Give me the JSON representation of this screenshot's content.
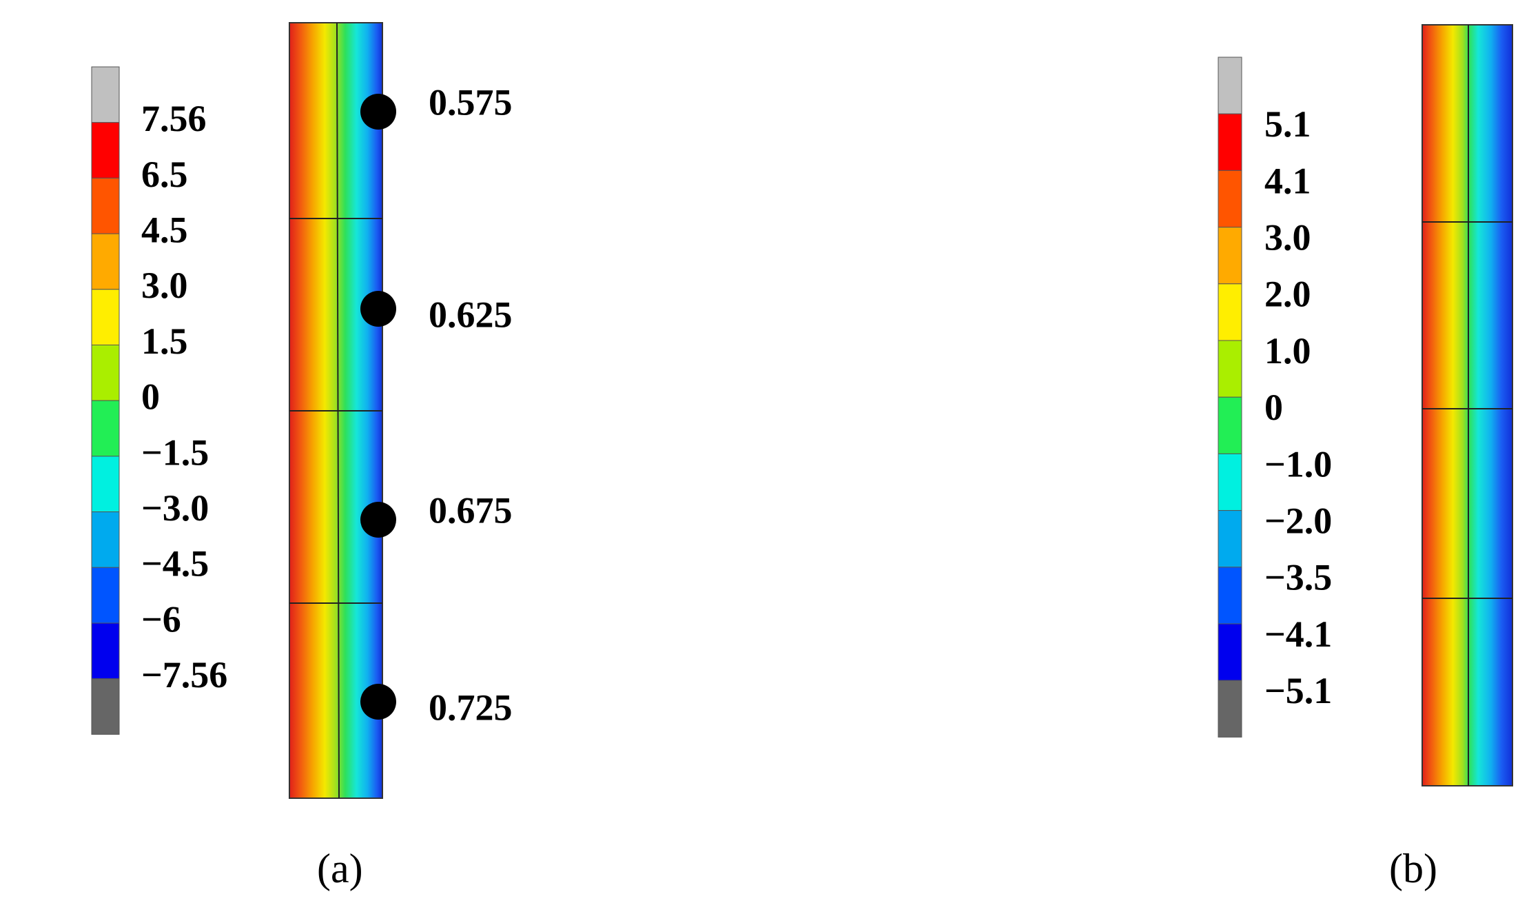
{
  "panels": [
    {
      "label": "(a)",
      "legend_labels": [
        "7.56",
        "6.5",
        "4.5",
        "3.0",
        "1.5",
        "0",
        "−1.5",
        "−3.0",
        "−4.5",
        "−6",
        "−7.56"
      ],
      "point_labels": [
        "0.575",
        "0.625",
        "0.675",
        "0.725"
      ]
    },
    {
      "label": "(b)",
      "legend_labels": [
        "5.1",
        "4.1",
        "3.0",
        "2.0",
        "1.0",
        "0",
        "−1.0",
        "−2.0",
        "−3.5",
        "−4.1",
        "−5.1"
      ]
    }
  ]
}
